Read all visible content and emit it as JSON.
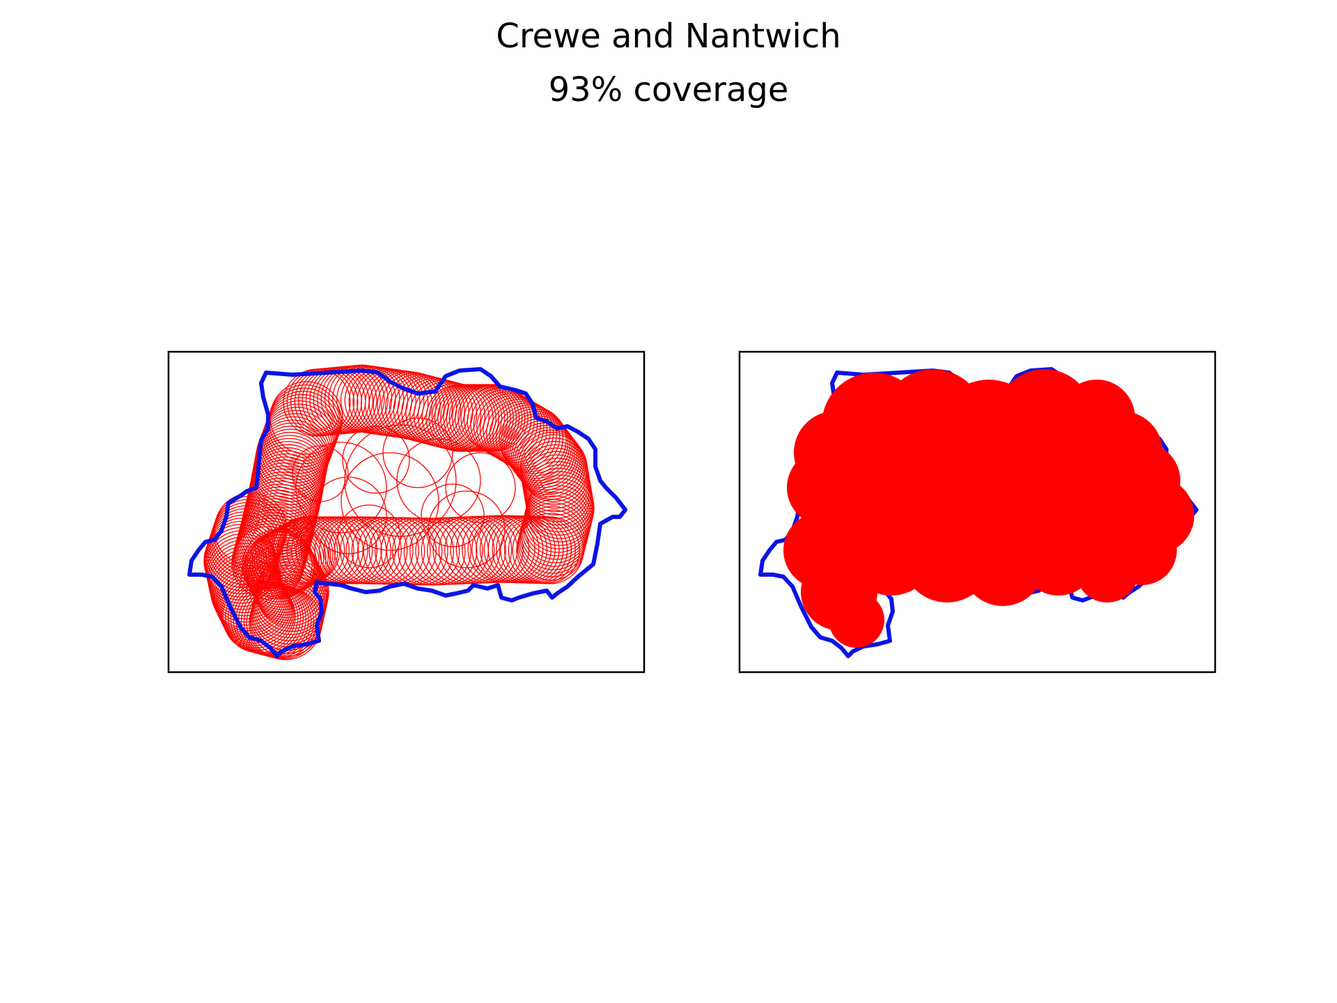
{
  "figure": {
    "title": "Crewe and Nantwich",
    "subtitle": "93% coverage"
  },
  "style": {
    "boundary_color": "#0a14e6",
    "circle_color": "#ff0000",
    "frame_color": "#000000"
  },
  "panels": [
    {
      "name": "circle-outlines-panel",
      "fill_circles": false
    },
    {
      "name": "filled-coverage-panel",
      "fill_circles": true
    }
  ]
}
